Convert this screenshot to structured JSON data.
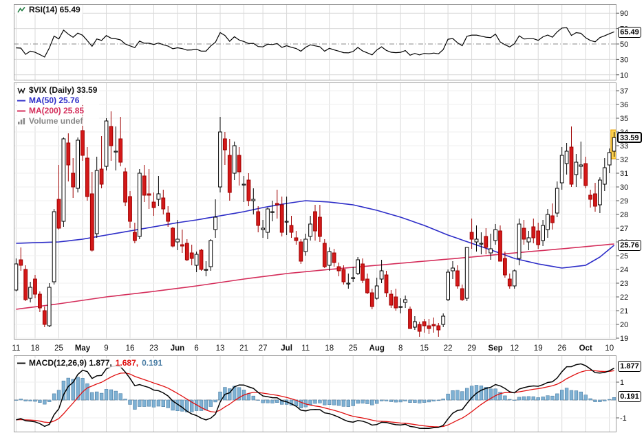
{
  "colors": {
    "up_candle": "#ffffff",
    "up_stroke": "#000000",
    "down_candle": "#d41919",
    "down_stroke": "#9e0000",
    "ma50": "#2d2dc8",
    "ma200": "#d42d5a",
    "rsi_line": "#000000",
    "rsi_icon": "#1d7a3e",
    "macd_line": "#000000",
    "signal_line": "#e01010",
    "histogram": "#7fb1d3",
    "histogram_stroke": "#4d7fa6",
    "volume_legend": "#888888",
    "grid": "#d9d9d9",
    "grid_light": "#efefef",
    "panel_border": "#9a9a9a",
    "highlight": "#ffd24d",
    "highlight_stroke": "#e8a000"
  },
  "rsi_panel": {
    "legend": "RSI(14) 65.49",
    "ticks": [
      90,
      70,
      50,
      30,
      10
    ],
    "midline": 50,
    "value": 65.49,
    "value_box": "65.49"
  },
  "main_panel": {
    "legend_symbol": "$VIX (Daily) 33.59",
    "legend_ma50": "MA(50) 25.76",
    "legend_ma200": "MA(200) 25.85",
    "legend_volume": "Volume undef",
    "ticks": [
      37,
      36,
      35,
      34,
      33,
      32,
      31,
      30,
      29,
      28,
      27,
      26,
      25,
      24,
      23,
      22,
      21,
      20,
      19
    ],
    "value": 33.59,
    "value_box": "33.59",
    "ma_box_value": 25.76,
    "ma_box": "25.76"
  },
  "x_axis": {
    "labels": [
      {
        "t": "11",
        "i": 0,
        "b": 0
      },
      {
        "t": "18",
        "i": 4,
        "b": 0
      },
      {
        "t": "25",
        "i": 9,
        "b": 0
      },
      {
        "t": "May",
        "i": 14,
        "b": 1
      },
      {
        "t": "9",
        "i": 19,
        "b": 0
      },
      {
        "t": "16",
        "i": 24,
        "b": 0
      },
      {
        "t": "23",
        "i": 29,
        "b": 0
      },
      {
        "t": "Jun",
        "i": 34,
        "b": 1
      },
      {
        "t": "6",
        "i": 38,
        "b": 0
      },
      {
        "t": "13",
        "i": 43,
        "b": 0
      },
      {
        "t": "21",
        "i": 48,
        "b": 0
      },
      {
        "t": "27",
        "i": 52,
        "b": 0
      },
      {
        "t": "Jul",
        "i": 57,
        "b": 1
      },
      {
        "t": "11",
        "i": 61,
        "b": 0
      },
      {
        "t": "18",
        "i": 66,
        "b": 0
      },
      {
        "t": "25",
        "i": 71,
        "b": 0
      },
      {
        "t": "Aug",
        "i": 76,
        "b": 1
      },
      {
        "t": "8",
        "i": 81,
        "b": 0
      },
      {
        "t": "15",
        "i": 86,
        "b": 0
      },
      {
        "t": "22",
        "i": 91,
        "b": 0
      },
      {
        "t": "29",
        "i": 96,
        "b": 0
      },
      {
        "t": "Sep",
        "i": 101,
        "b": 1
      },
      {
        "t": "12",
        "i": 105,
        "b": 0
      },
      {
        "t": "19",
        "i": 110,
        "b": 0
      },
      {
        "t": "26",
        "i": 115,
        "b": 0
      },
      {
        "t": "Oct",
        "i": 120,
        "b": 1
      },
      {
        "t": "10",
        "i": 125,
        "b": 0
      }
    ]
  },
  "macd_panel": {
    "legend_main": "MACD(12,26,9) 1.877,",
    "legend_signal": "1.687,",
    "legend_hist": "0.191",
    "ticks": [
      1,
      -1
    ],
    "macd_value": 1.877,
    "macd_box": "1.877",
    "hist_value": 0.191,
    "hist_box": "0.191"
  },
  "chart_data": {
    "type": "candlestick",
    "symbol": "$VIX",
    "timeframe": "Daily",
    "last_price": 33.59,
    "ylim_price": [
      19,
      37
    ],
    "ylim_rsi": [
      10,
      90
    ],
    "macd_tick_range": [
      -1,
      1
    ],
    "indicators": {
      "rsi": {
        "period": 14,
        "value": 65.49
      },
      "ma50": {
        "period": 50,
        "value": 25.76
      },
      "ma200": {
        "period": 200,
        "value": 25.85
      },
      "volume": "undef",
      "macd": {
        "fast": 12,
        "slow": 26,
        "signal": 9,
        "macd_value": 1.877,
        "signal_value": 1.687,
        "hist_value": 0.191
      }
    },
    "candles": [
      [
        22.5,
        24.8,
        22.4,
        24.4
      ],
      [
        24.7,
        25.6,
        23.9,
        24.3
      ],
      [
        24,
        24.3,
        21.7,
        21.8
      ],
      [
        21.9,
        23.1,
        21.6,
        22.7
      ],
      [
        23.3,
        23.6,
        21.9,
        22.2
      ],
      [
        22.2,
        22.4,
        20.9,
        21.2
      ],
      [
        21,
        21.3,
        19.8,
        20
      ],
      [
        19.9,
        23,
        19.8,
        22.7
      ],
      [
        23.1,
        28.4,
        22.9,
        28.2
      ],
      [
        29.1,
        31.6,
        26.9,
        27
      ],
      [
        27.5,
        33.6,
        27.1,
        33.5
      ],
      [
        33.2,
        33.9,
        30.4,
        31.6
      ],
      [
        31,
        32.1,
        29.2,
        30
      ],
      [
        29.9,
        33.6,
        29.6,
        33.4
      ],
      [
        34.1,
        36,
        31.9,
        32.3
      ],
      [
        32.1,
        32.9,
        29,
        29.3
      ],
      [
        29.5,
        31.1,
        25.3,
        25.4
      ],
      [
        26.6,
        32.2,
        26.3,
        31.2
      ],
      [
        31.3,
        33.7,
        29.9,
        30.2
      ],
      [
        31.5,
        35,
        31.2,
        34.8
      ],
      [
        34.4,
        35.5,
        31.9,
        33
      ],
      [
        32.6,
        34.4,
        31.2,
        32.6
      ],
      [
        33.5,
        35.1,
        31.5,
        31.8
      ],
      [
        31.1,
        31.4,
        28.6,
        28.9
      ],
      [
        29.3,
        29.7,
        27,
        27.5
      ],
      [
        26.7,
        27.4,
        25.9,
        26.1
      ],
      [
        26.4,
        31.3,
        26.2,
        31
      ],
      [
        30.8,
        31.6,
        28.9,
        29.4
      ],
      [
        29.5,
        31.3,
        28.4,
        29.4
      ],
      [
        28.9,
        29.6,
        27.9,
        28.5
      ],
      [
        29.1,
        30.8,
        28.6,
        29.5
      ],
      [
        29.2,
        29.8,
        28,
        28.4
      ],
      [
        28.1,
        28.6,
        27.1,
        27.5
      ],
      [
        27,
        27.1,
        25.6,
        25.7
      ],
      [
        26,
        27.6,
        25.4,
        26.2
      ],
      [
        25.8,
        26.9,
        25.2,
        25.7
      ],
      [
        25.9,
        26.2,
        24.6,
        24.7
      ],
      [
        25.2,
        25.8,
        24.3,
        24.8
      ],
      [
        24.3,
        25.3,
        23.8,
        25.1
      ],
      [
        25.4,
        25.5,
        23.9,
        24
      ],
      [
        24,
        24.6,
        23.5,
        24
      ],
      [
        24.2,
        26.2,
        23.9,
        26.1
      ],
      [
        26.9,
        29.1,
        26.3,
        27.8
      ],
      [
        30,
        35.1,
        29.6,
        34
      ],
      [
        33.5,
        34,
        31.6,
        32.7
      ],
      [
        32.3,
        33.5,
        29,
        29.6
      ],
      [
        31,
        33.3,
        30.5,
        33
      ],
      [
        32.3,
        32.9,
        30.1,
        31.1
      ],
      [
        30.2,
        30.8,
        28.9,
        30.2
      ],
      [
        30.5,
        31,
        28.6,
        29
      ],
      [
        29,
        29.9,
        28,
        29.1
      ],
      [
        28.2,
        28.6,
        26.7,
        27.2
      ],
      [
        26.9,
        27.6,
        26.3,
        27
      ],
      [
        26.7,
        28.5,
        26.2,
        28.4
      ],
      [
        28.2,
        29,
        27.5,
        28.2
      ],
      [
        28.8,
        29.8,
        27.7,
        28.7
      ],
      [
        28.7,
        29.3,
        26.4,
        26.7
      ],
      [
        27.5,
        29.3,
        26.5,
        27.5
      ],
      [
        27.2,
        27.9,
        26.3,
        26.7
      ],
      [
        26.3,
        26.8,
        25.8,
        26.1
      ],
      [
        26,
        26.2,
        24.4,
        24.6
      ],
      [
        25.3,
        26.6,
        25,
        26.2
      ],
      [
        26.4,
        27.9,
        26.1,
        27.3
      ],
      [
        28.2,
        28.7,
        26.1,
        26.8
      ],
      [
        27.8,
        28.7,
        26,
        26.4
      ],
      [
        25.9,
        26.2,
        24.1,
        24.2
      ],
      [
        24.3,
        25.6,
        23.9,
        25.3
      ],
      [
        25.2,
        25.5,
        24.2,
        24.5
      ],
      [
        24.2,
        24.5,
        23.5,
        23.9
      ],
      [
        24,
        24.3,
        22.9,
        23.1
      ],
      [
        23,
        23.7,
        22.6,
        23
      ],
      [
        23.4,
        24.2,
        23.1,
        23.4
      ],
      [
        23.7,
        24.9,
        23.6,
        24.7
      ],
      [
        24.4,
        24.8,
        23,
        23.2
      ],
      [
        23.3,
        23.7,
        22.2,
        22.3
      ],
      [
        22.3,
        22.6,
        21.1,
        21.3
      ],
      [
        21.9,
        23.4,
        21.8,
        22.8
      ],
      [
        23.3,
        24.7,
        23,
        23.9
      ],
      [
        23.6,
        23.9,
        22,
        22.3
      ],
      [
        22.2,
        22.5,
        21.2,
        21.4
      ],
      [
        22,
        22.6,
        21,
        21.2
      ],
      [
        21.3,
        21.9,
        20.8,
        21.3
      ],
      [
        21.6,
        22.1,
        21.2,
        21.8
      ],
      [
        21.1,
        21.3,
        19.7,
        19.7
      ],
      [
        19.8,
        20.6,
        19.6,
        20.2
      ],
      [
        20,
        20.2,
        19.1,
        19.5
      ],
      [
        20.2,
        20.4,
        19.4,
        19.9
      ],
      [
        19.9,
        20.4,
        19.3,
        19.7
      ],
      [
        20,
        20.5,
        19.4,
        19.9
      ],
      [
        19.9,
        20.1,
        19.1,
        19.6
      ],
      [
        20,
        20.8,
        19.8,
        20.6
      ],
      [
        21.8,
        24,
        21.7,
        23.8
      ],
      [
        23.9,
        24.6,
        23.3,
        24.1
      ],
      [
        23.9,
        24.3,
        22.6,
        22.8
      ],
      [
        22.6,
        22.9,
        21.7,
        21.8
      ],
      [
        21.9,
        25.6,
        21.7,
        25.6
      ],
      [
        26.7,
        27.7,
        25.5,
        26.2
      ],
      [
        26,
        27.2,
        25.3,
        26.2
      ],
      [
        25.9,
        26.7,
        25.1,
        25.9
      ],
      [
        26.4,
        27,
        25.1,
        25.6
      ],
      [
        25.2,
        26.6,
        24.7,
        25.5
      ],
      [
        26.1,
        27.3,
        25.8,
        26.9
      ],
      [
        26.8,
        27.2,
        24.6,
        24.6
      ],
      [
        24.8,
        25.3,
        23.4,
        23.6
      ],
      [
        23.3,
        23.7,
        22.6,
        22.8
      ],
      [
        22.8,
        24,
        22.6,
        23.9
      ],
      [
        24.8,
        27.7,
        24.3,
        27.3
      ],
      [
        27,
        27.6,
        25.8,
        26.2
      ],
      [
        26,
        26.8,
        25.4,
        26.3
      ],
      [
        27.1,
        27.7,
        25.9,
        26.3
      ],
      [
        26.8,
        27.4,
        25.5,
        25.8
      ],
      [
        26.1,
        27.6,
        25.7,
        27.2
      ],
      [
        26.9,
        28.4,
        26.3,
        28
      ],
      [
        27.9,
        28.8,
        26.9,
        27.4
      ],
      [
        28.1,
        30.4,
        27.8,
        29.9
      ],
      [
        30.3,
        32.9,
        29.8,
        32.3
      ],
      [
        31.7,
        33.2,
        30.9,
        32.6
      ],
      [
        32.9,
        34.4,
        30,
        30.2
      ],
      [
        30.9,
        32.4,
        30,
        31.8
      ],
      [
        31.5,
        33.3,
        30.6,
        31.6
      ],
      [
        31.7,
        32.2,
        29.9,
        30.1
      ],
      [
        29.4,
        29.8,
        28.5,
        29.1
      ],
      [
        29.5,
        30.3,
        28.2,
        28.6
      ],
      [
        28.7,
        30.7,
        28.1,
        30.5
      ],
      [
        30.2,
        32.1,
        29.7,
        31.4
      ],
      [
        31.6,
        32.8,
        31,
        32.5
      ],
      [
        32.6,
        34,
        32.2,
        33.59
      ]
    ],
    "ma50_points": [
      [
        0,
        25.9
      ],
      [
        9,
        26.0
      ],
      [
        14,
        26.2
      ],
      [
        19,
        26.5
      ],
      [
        24,
        26.8
      ],
      [
        29,
        27.1
      ],
      [
        34,
        27.4
      ],
      [
        38,
        27.6
      ],
      [
        43,
        27.9
      ],
      [
        48,
        28.2
      ],
      [
        52,
        28.5
      ],
      [
        57,
        28.8
      ],
      [
        61,
        29.0
      ],
      [
        66,
        28.9
      ],
      [
        71,
        28.7
      ],
      [
        76,
        28.3
      ],
      [
        81,
        27.8
      ],
      [
        86,
        27.2
      ],
      [
        91,
        26.5
      ],
      [
        96,
        25.9
      ],
      [
        101,
        25.3
      ],
      [
        105,
        24.8
      ],
      [
        110,
        24.4
      ],
      [
        115,
        24.1
      ],
      [
        120,
        24.3
      ],
      [
        123,
        24.9
      ],
      [
        126,
        25.76
      ]
    ],
    "ma200_points": [
      [
        0,
        21.1
      ],
      [
        9,
        21.5
      ],
      [
        19,
        22.0
      ],
      [
        29,
        22.4
      ],
      [
        38,
        22.8
      ],
      [
        48,
        23.3
      ],
      [
        57,
        23.7
      ],
      [
        66,
        24.0
      ],
      [
        76,
        24.3
      ],
      [
        86,
        24.6
      ],
      [
        96,
        24.9
      ],
      [
        105,
        25.2
      ],
      [
        115,
        25.5
      ],
      [
        126,
        25.85
      ]
    ]
  }
}
